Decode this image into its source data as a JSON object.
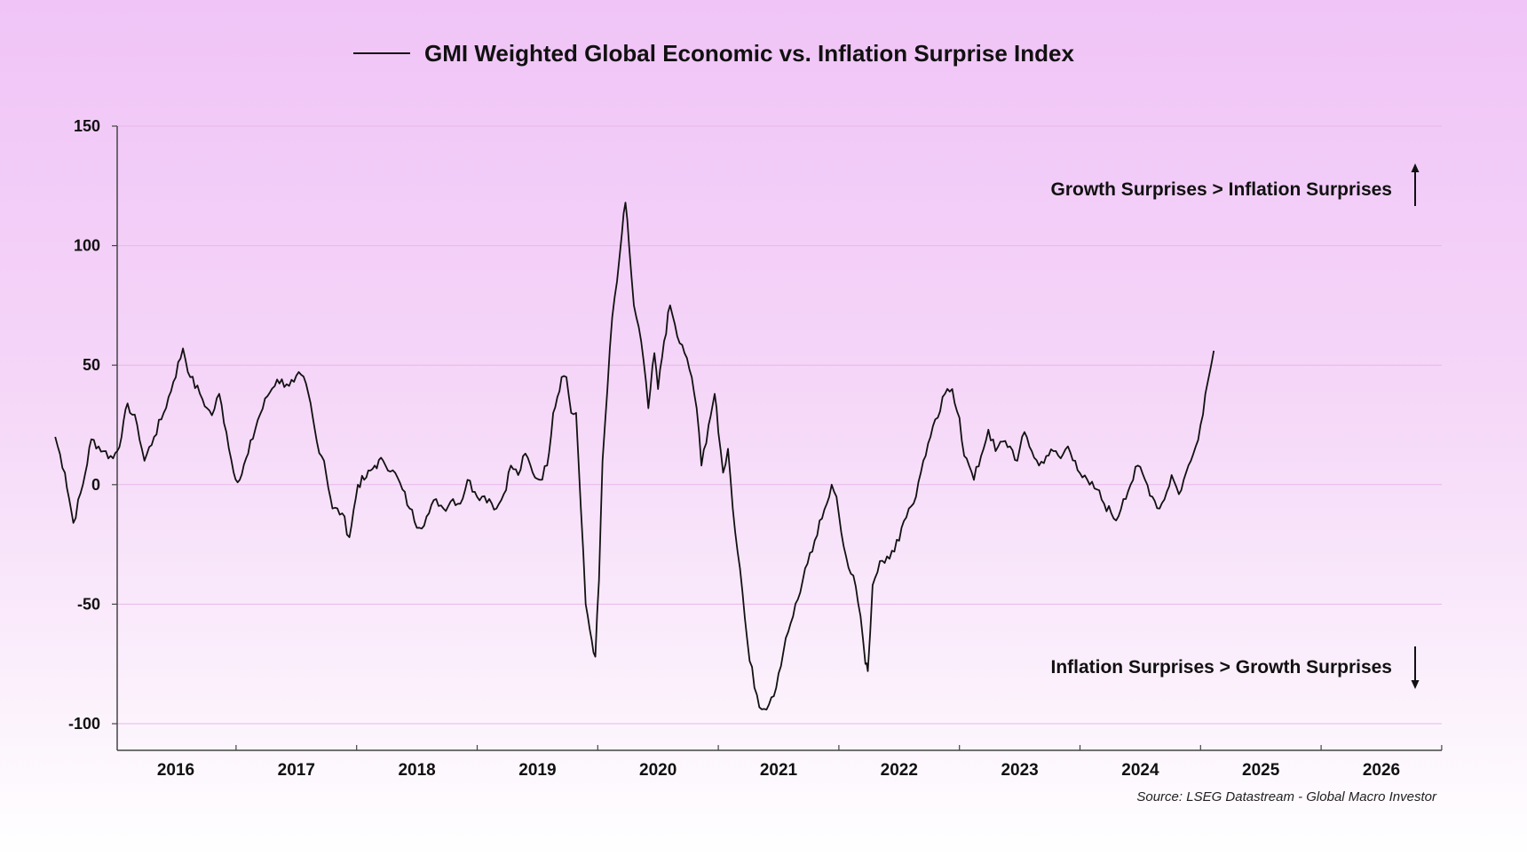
{
  "chart_data": {
    "type": "line",
    "title": "GMI Weighted Global Economic vs. Inflation Surprise Index",
    "legend": {
      "position": "top-center",
      "entries": [
        "GMI Weighted Global Economic vs. Inflation Surprise Index"
      ]
    },
    "xlabel": "",
    "ylabel": "",
    "ylim": [
      -110,
      150
    ],
    "xlim": [
      2015.5,
      2026.5
    ],
    "grid": true,
    "yticks": [
      150,
      100,
      50,
      0,
      -50,
      -100
    ],
    "ytick_labels": [
      "150",
      "100",
      "50",
      "0",
      "-50",
      "-100"
    ],
    "xtick_labels": [
      "2016",
      "2017",
      "2018",
      "2019",
      "2020",
      "2021",
      "2022",
      "2023",
      "2024",
      "2025",
      "2026"
    ],
    "annotations": {
      "upper": "Growth Surprises > Inflation Surprises",
      "lower": "Inflation Surprises > Growth Surprises"
    },
    "source": "Source: LSEG Datastream - Global Macro Investor",
    "series": [
      {
        "name": "GMI Weighted Global Economic vs. Inflation Surprise Index",
        "color": "#111111",
        "points": [
          [
            2015.5,
            20
          ],
          [
            2015.58,
            5
          ],
          [
            2015.65,
            -16
          ],
          [
            2015.73,
            0
          ],
          [
            2015.8,
            19
          ],
          [
            2015.9,
            14
          ],
          [
            2015.98,
            11
          ],
          [
            2016.05,
            20
          ],
          [
            2016.1,
            34
          ],
          [
            2016.18,
            25
          ],
          [
            2016.24,
            10
          ],
          [
            2016.32,
            20
          ],
          [
            2016.4,
            30
          ],
          [
            2016.48,
            43
          ],
          [
            2016.56,
            57
          ],
          [
            2016.62,
            45
          ],
          [
            2016.7,
            38
          ],
          [
            2016.76,
            32
          ],
          [
            2016.8,
            29
          ],
          [
            2016.86,
            38
          ],
          [
            2016.92,
            22
          ],
          [
            2016.98,
            5
          ],
          [
            2017.03,
            2
          ],
          [
            2017.1,
            13
          ],
          [
            2017.18,
            27
          ],
          [
            2017.26,
            37
          ],
          [
            2017.34,
            44
          ],
          [
            2017.42,
            42
          ],
          [
            2017.48,
            43
          ],
          [
            2017.54,
            46
          ],
          [
            2017.6,
            38
          ],
          [
            2017.67,
            18
          ],
          [
            2017.73,
            10
          ],
          [
            2017.8,
            -10
          ],
          [
            2017.88,
            -12
          ],
          [
            2017.94,
            -22
          ],
          [
            2018.01,
            0
          ],
          [
            2018.08,
            3
          ],
          [
            2018.15,
            8
          ],
          [
            2018.22,
            10
          ],
          [
            2018.3,
            6
          ],
          [
            2018.38,
            -2
          ],
          [
            2018.44,
            -10
          ],
          [
            2018.52,
            -18
          ],
          [
            2018.6,
            -12
          ],
          [
            2018.66,
            -6
          ],
          [
            2018.72,
            -10
          ],
          [
            2018.8,
            -6
          ],
          [
            2018.86,
            -8
          ],
          [
            2018.92,
            2
          ],
          [
            2018.98,
            -3
          ],
          [
            2019.04,
            -5
          ],
          [
            2019.1,
            -6
          ],
          [
            2019.16,
            -10
          ],
          [
            2019.22,
            -4
          ],
          [
            2019.28,
            8
          ],
          [
            2019.34,
            4
          ],
          [
            2019.4,
            13
          ],
          [
            2019.46,
            5
          ],
          [
            2019.52,
            2
          ],
          [
            2019.58,
            8
          ],
          [
            2019.63,
            30
          ],
          [
            2019.7,
            45
          ],
          [
            2019.74,
            45
          ],
          [
            2019.78,
            30
          ],
          [
            2019.82,
            30
          ],
          [
            2019.86,
            -10
          ],
          [
            2019.9,
            -50
          ],
          [
            2019.95,
            -65
          ],
          [
            2019.98,
            -72
          ],
          [
            2020.01,
            -40
          ],
          [
            2020.04,
            10
          ],
          [
            2020.08,
            40
          ],
          [
            2020.12,
            70
          ],
          [
            2020.16,
            85
          ],
          [
            2020.2,
            105
          ],
          [
            2020.23,
            118
          ],
          [
            2020.26,
            100
          ],
          [
            2020.3,
            75
          ],
          [
            2020.36,
            60
          ],
          [
            2020.42,
            32
          ],
          [
            2020.47,
            55
          ],
          [
            2020.5,
            40
          ],
          [
            2020.55,
            60
          ],
          [
            2020.6,
            75
          ],
          [
            2020.66,
            62
          ],
          [
            2020.72,
            55
          ],
          [
            2020.78,
            45
          ],
          [
            2020.82,
            32
          ],
          [
            2020.86,
            8
          ],
          [
            2020.92,
            25
          ],
          [
            2020.97,
            38
          ],
          [
            2021.0,
            22
          ],
          [
            2021.04,
            5
          ],
          [
            2021.08,
            15
          ],
          [
            2021.12,
            -10
          ],
          [
            2021.18,
            -35
          ],
          [
            2021.24,
            -65
          ],
          [
            2021.3,
            -85
          ],
          [
            2021.36,
            -94
          ],
          [
            2021.42,
            -92
          ],
          [
            2021.48,
            -85
          ],
          [
            2021.54,
            -70
          ],
          [
            2021.6,
            -58
          ],
          [
            2021.66,
            -48
          ],
          [
            2021.72,
            -35
          ],
          [
            2021.78,
            -28
          ],
          [
            2021.84,
            -15
          ],
          [
            2021.9,
            -8
          ],
          [
            2021.94,
            0
          ],
          [
            2021.98,
            -5
          ],
          [
            2022.02,
            -20
          ],
          [
            2022.06,
            -30
          ],
          [
            2022.12,
            -38
          ],
          [
            2022.18,
            -55
          ],
          [
            2022.22,
            -75
          ],
          [
            2022.24,
            -78
          ],
          [
            2022.28,
            -42
          ],
          [
            2022.34,
            -32
          ],
          [
            2022.4,
            -30
          ],
          [
            2022.46,
            -28
          ],
          [
            2022.52,
            -18
          ],
          [
            2022.58,
            -10
          ],
          [
            2022.64,
            -5
          ],
          [
            2022.7,
            10
          ],
          [
            2022.76,
            20
          ],
          [
            2022.82,
            28
          ],
          [
            2022.88,
            38
          ],
          [
            2022.94,
            40
          ],
          [
            2023.0,
            28
          ],
          [
            2023.04,
            12
          ],
          [
            2023.08,
            8
          ],
          [
            2023.12,
            2
          ],
          [
            2023.18,
            12
          ],
          [
            2023.24,
            23
          ],
          [
            2023.3,
            14
          ],
          [
            2023.36,
            18
          ],
          [
            2023.42,
            16
          ],
          [
            2023.48,
            10
          ],
          [
            2023.54,
            22
          ],
          [
            2023.6,
            14
          ],
          [
            2023.66,
            8
          ],
          [
            2023.72,
            12
          ],
          [
            2023.78,
            14
          ],
          [
            2023.84,
            11
          ],
          [
            2023.9,
            16
          ],
          [
            2023.96,
            10
          ],
          [
            2024.02,
            3
          ],
          [
            2024.08,
            0
          ],
          [
            2024.14,
            -2
          ],
          [
            2024.2,
            -8
          ],
          [
            2024.26,
            -12
          ],
          [
            2024.3,
            -15
          ],
          [
            2024.36,
            -6
          ],
          [
            2024.42,
            0
          ],
          [
            2024.48,
            8
          ],
          [
            2024.54,
            2
          ],
          [
            2024.6,
            -5
          ],
          [
            2024.66,
            -10
          ],
          [
            2024.72,
            -3
          ],
          [
            2024.76,
            4
          ],
          [
            2024.82,
            -4
          ],
          [
            2024.86,
            2
          ],
          [
            2024.92,
            10
          ],
          [
            2024.96,
            16
          ],
          [
            2025.0,
            25
          ],
          [
            2025.04,
            38
          ],
          [
            2025.08,
            48
          ],
          [
            2025.11,
            56
          ]
        ]
      }
    ]
  }
}
